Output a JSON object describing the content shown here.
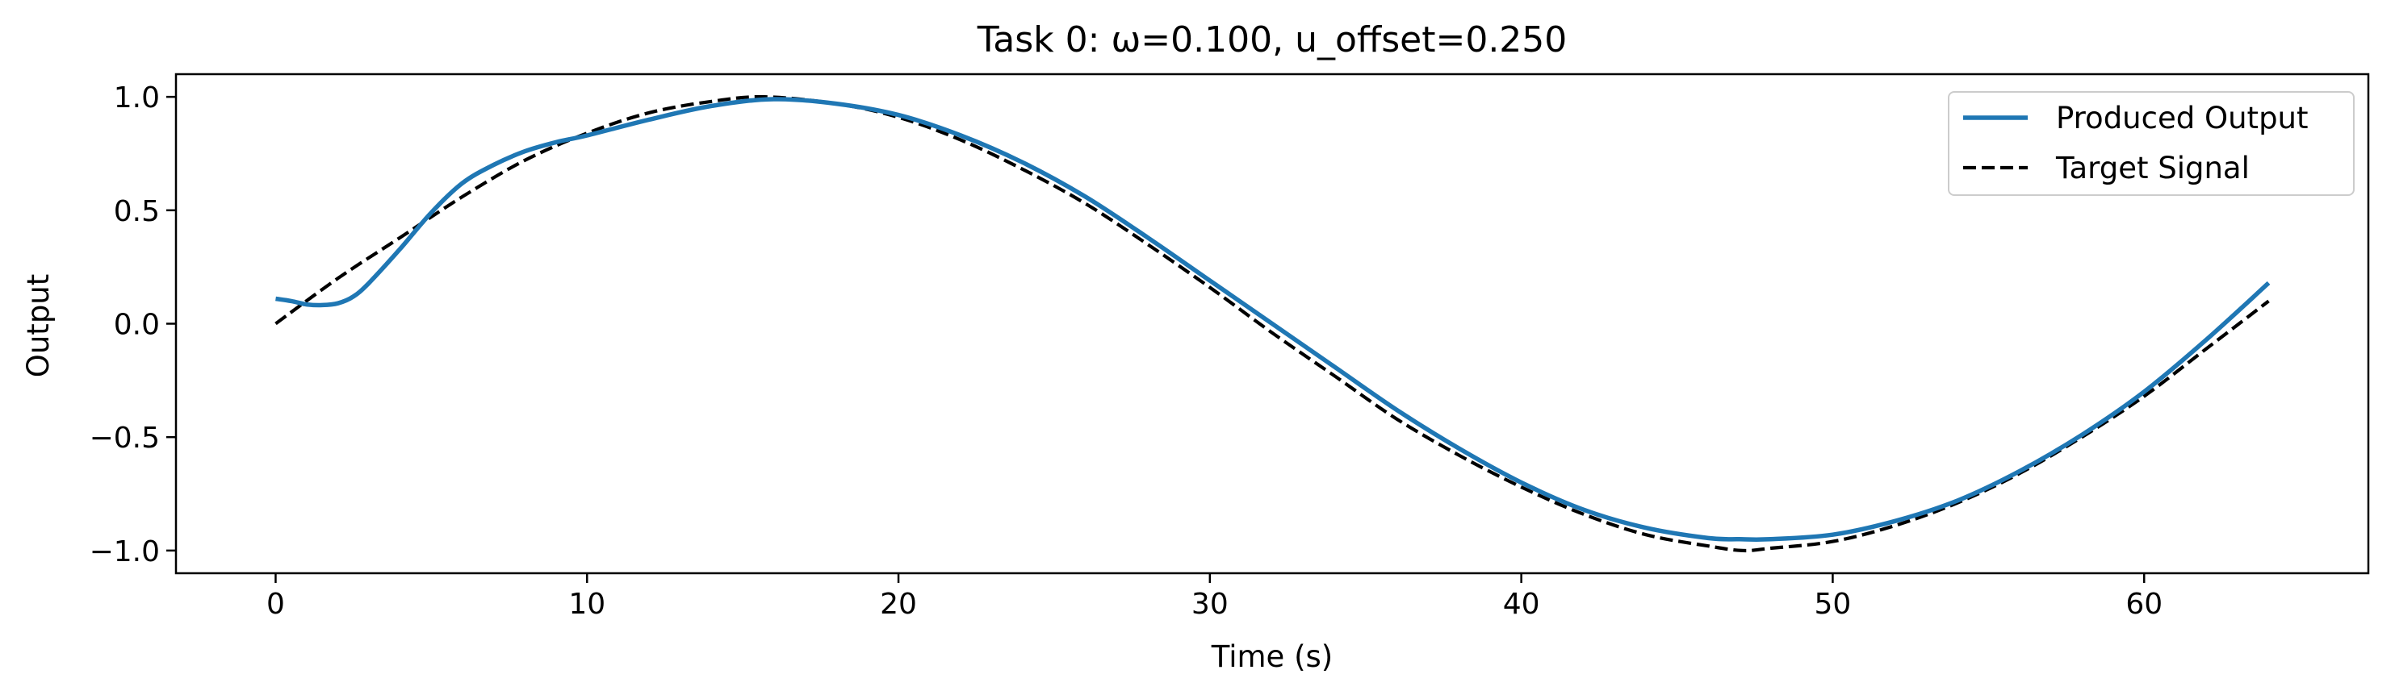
{
  "chart_data": {
    "type": "line",
    "title": "Task 0: ω=0.100, u_offset=0.250",
    "xlabel": "Time (s)",
    "ylabel": "Output",
    "xlim": [
      -3.2,
      67.2
    ],
    "ylim": [
      -1.1,
      1.1
    ],
    "xticks": [
      0,
      10,
      20,
      30,
      40,
      50,
      60
    ],
    "xtick_labels": [
      "0",
      "10",
      "20",
      "30",
      "40",
      "50",
      "60"
    ],
    "yticks": [
      -1.0,
      -0.5,
      0.0,
      0.5,
      1.0
    ],
    "ytick_labels": [
      "−1.0",
      "−0.5",
      "0.0",
      "0.5",
      "1.0"
    ],
    "grid": false,
    "legend_position": "top-right",
    "series": [
      {
        "name": "Produced Output",
        "color": "#1f77b4",
        "style": "solid",
        "x": [
          0,
          0.5,
          1,
          1.5,
          2,
          2.5,
          3,
          4,
          5,
          6,
          7,
          8,
          9,
          10,
          12,
          14,
          16,
          18,
          20,
          22,
          24,
          26,
          28,
          30,
          32,
          34,
          36,
          38,
          40,
          42,
          44,
          46,
          47,
          48,
          50,
          52,
          54,
          56,
          58,
          60,
          62,
          64
        ],
        "y": [
          0.11,
          0.1,
          0.085,
          0.082,
          0.09,
          0.12,
          0.18,
          0.33,
          0.49,
          0.62,
          0.7,
          0.76,
          0.8,
          0.83,
          0.9,
          0.96,
          0.99,
          0.97,
          0.92,
          0.83,
          0.71,
          0.56,
          0.38,
          0.19,
          0.0,
          -0.19,
          -0.38,
          -0.55,
          -0.7,
          -0.82,
          -0.9,
          -0.945,
          -0.95,
          -0.95,
          -0.93,
          -0.87,
          -0.78,
          -0.65,
          -0.49,
          -0.3,
          -0.07,
          0.18
        ]
      },
      {
        "name": "Target Signal",
        "color": "#000000",
        "style": "dashed",
        "x": [
          0,
          2,
          4,
          6,
          8,
          10,
          12,
          14,
          15.7,
          18,
          20,
          22,
          24,
          26,
          28,
          30,
          32,
          34,
          36,
          38,
          40,
          42,
          44,
          46,
          47.1,
          48,
          50,
          52,
          54,
          56,
          58,
          60,
          62,
          64
        ],
        "y": [
          0.0,
          0.2,
          0.38,
          0.56,
          0.72,
          0.84,
          0.93,
          0.98,
          1.0,
          0.97,
          0.91,
          0.81,
          0.68,
          0.53,
          0.35,
          0.16,
          -0.04,
          -0.23,
          -0.42,
          -0.58,
          -0.72,
          -0.84,
          -0.93,
          -0.98,
          -1.0,
          -0.99,
          -0.96,
          -0.89,
          -0.79,
          -0.66,
          -0.5,
          -0.32,
          -0.11,
          0.1
        ]
      }
    ]
  }
}
